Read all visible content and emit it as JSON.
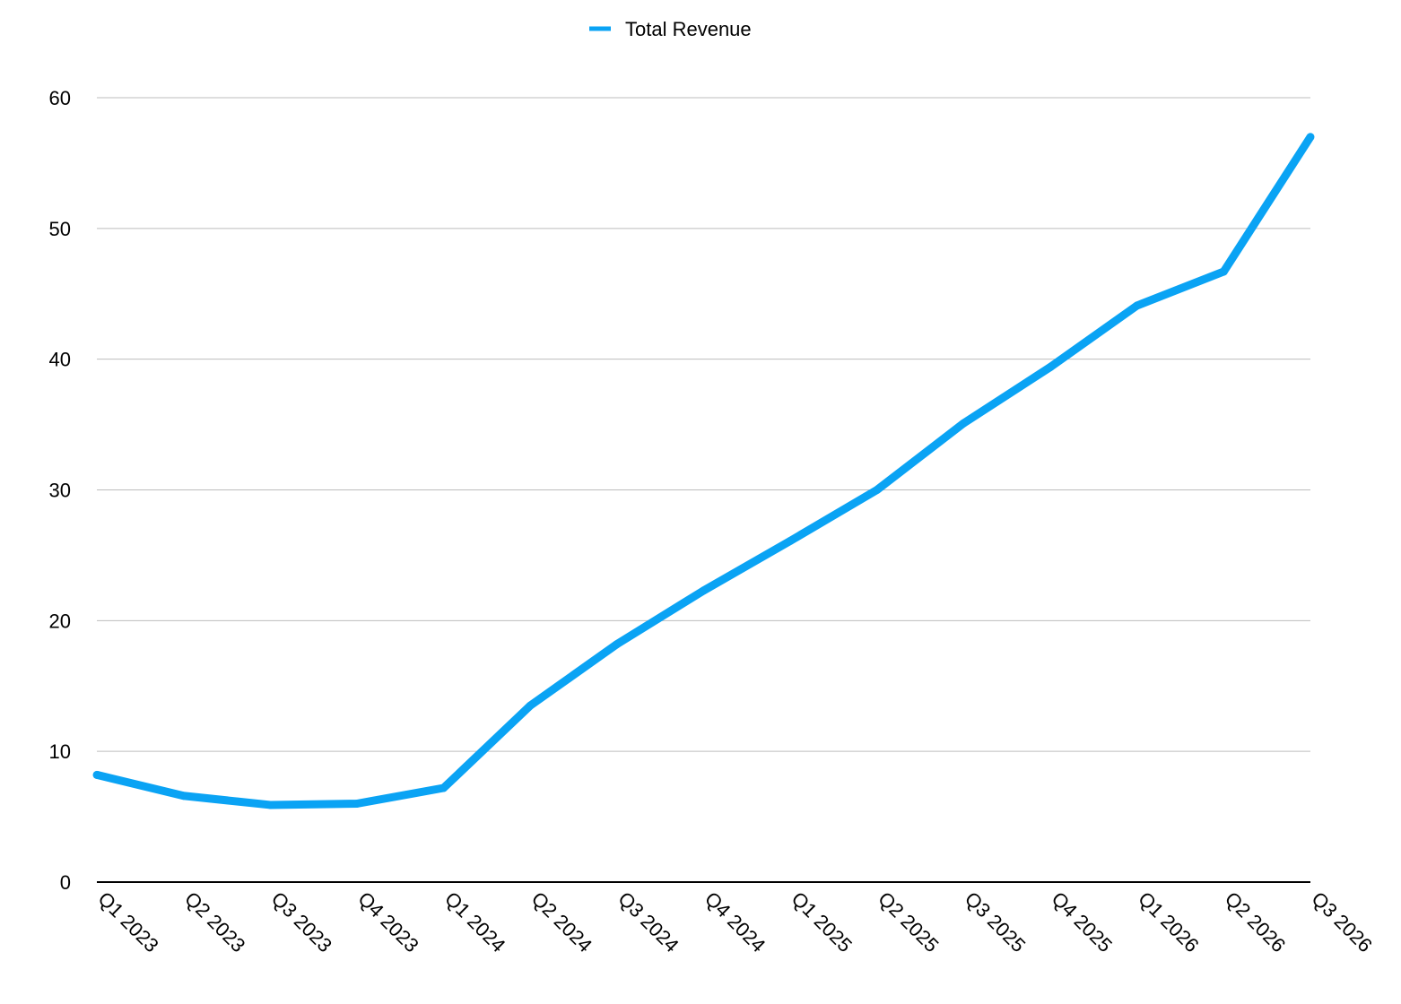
{
  "chart_data": {
    "type": "line",
    "title": "",
    "xlabel": "",
    "ylabel": "",
    "categories": [
      "Q1 2023",
      "Q2 2023",
      "Q3 2023",
      "Q4 2023",
      "Q1 2024",
      "Q2 2024",
      "Q3 2024",
      "Q4 2024",
      "Q1 2025",
      "Q2 2025",
      "Q3 2025",
      "Q4 2025",
      "Q1 2026",
      "Q2 2026",
      "Q3 2026"
    ],
    "series": [
      {
        "name": "Total Revenue",
        "color": "#0AA3F4",
        "values": [
          8.2,
          6.6,
          5.9,
          6.0,
          7.2,
          13.5,
          18.2,
          22.3,
          26.1,
          30.0,
          35.1,
          39.4,
          44.1,
          46.7,
          57.0
        ]
      }
    ],
    "ylim": [
      0,
      60
    ],
    "yticks": [
      0,
      10,
      20,
      30,
      40,
      50,
      60
    ],
    "grid": true,
    "legend_position": "top-center"
  }
}
